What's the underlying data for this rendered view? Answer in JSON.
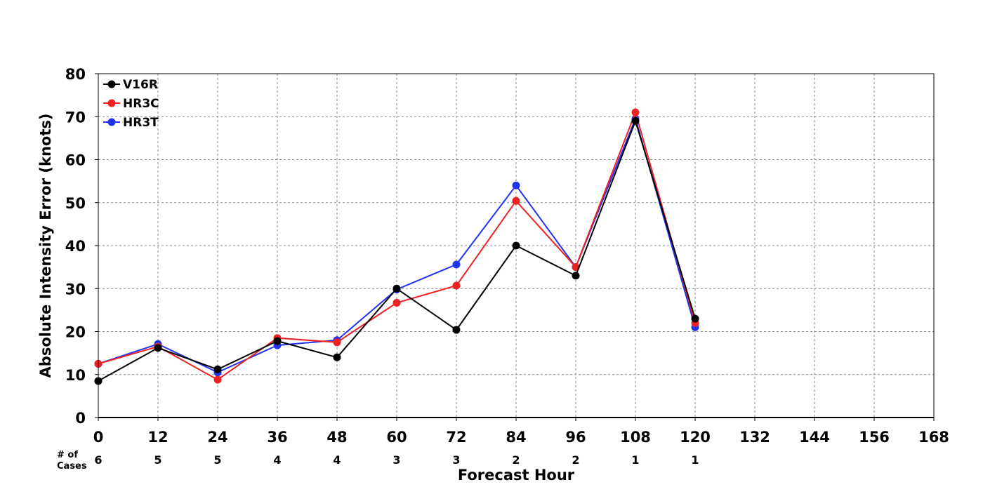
{
  "chart_data": {
    "type": "line",
    "title": "",
    "xlabel": "Forecast Hour",
    "ylabel": "Absolute Intensity Error (knots)",
    "xlim": [
      0,
      168
    ],
    "ylim": [
      0,
      80
    ],
    "x_ticks": [
      0,
      12,
      24,
      36,
      48,
      60,
      72,
      84,
      96,
      108,
      120,
      132,
      144,
      156,
      168
    ],
    "y_ticks": [
      0,
      10,
      20,
      30,
      40,
      50,
      60,
      70,
      80
    ],
    "grid": true,
    "legend_position": "top-left",
    "cases_label": "# of\nCases",
    "cases": [
      {
        "x": 0,
        "n": 6
      },
      {
        "x": 12,
        "n": 5
      },
      {
        "x": 24,
        "n": 5
      },
      {
        "x": 36,
        "n": 4
      },
      {
        "x": 48,
        "n": 4
      },
      {
        "x": 60,
        "n": 3
      },
      {
        "x": 72,
        "n": 3
      },
      {
        "x": 84,
        "n": 2
      },
      {
        "x": 96,
        "n": 2
      },
      {
        "x": 108,
        "n": 1
      },
      {
        "x": 120,
        "n": 1
      }
    ],
    "x": [
      0,
      12,
      24,
      36,
      48,
      60,
      72,
      84,
      96,
      108,
      120
    ],
    "series": [
      {
        "name": "V16R",
        "color": "#000000",
        "values": [
          8.5,
          16.2,
          11.2,
          17.8,
          14.0,
          30.0,
          20.4,
          40.0,
          33.0,
          69.0,
          23.0
        ]
      },
      {
        "name": "HR3C",
        "color": "#ee2222",
        "values": [
          12.5,
          16.5,
          8.8,
          18.5,
          17.5,
          26.7,
          30.7,
          50.4,
          35.0,
          71.0,
          22.0
        ]
      },
      {
        "name": "HR3T",
        "color": "#2233ee",
        "values": [
          12.5,
          17.1,
          10.5,
          16.8,
          18.0,
          29.8,
          35.6,
          54.0,
          35.0,
          69.5,
          21.0
        ]
      }
    ],
    "draw_order": [
      "HR3T",
      "HR3C",
      "V16R"
    ]
  }
}
